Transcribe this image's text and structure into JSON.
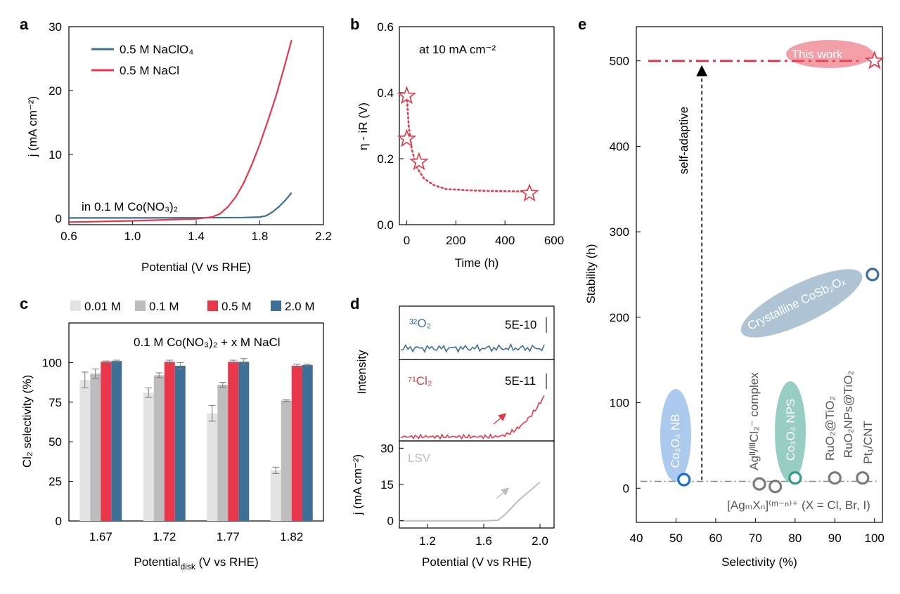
{
  "colors": {
    "blue": "#3e7097",
    "red": "#e8364a",
    "grey": "#bdbdbd",
    "lightgrey": "#e3e3e3",
    "darkgrey": "#7b7b7b",
    "green": "#2f9b85"
  },
  "panels": {
    "a": {
      "letter": "a",
      "xlabel": "Potential (V vs RHE)",
      "ylabel": "j (mA cm⁻²)",
      "xticks": [
        "0.6",
        "1.0",
        "1.4",
        "1.8",
        "2.2"
      ],
      "yticks": [
        "0",
        "10",
        "20",
        "30"
      ],
      "legend": [
        "0.5 M NaClO₄",
        "0.5 M NaCl"
      ],
      "annotation": "in 0.1 M Co(NO₃)₂"
    },
    "b": {
      "letter": "b",
      "xlabel": "Time (h)",
      "ylabel": "η - iR (V)",
      "xticks": [
        "0",
        "200",
        "400",
        "600"
      ],
      "yticks": [
        "0.0",
        "0.2",
        "0.4",
        "0.6"
      ],
      "annotation": "at 10 mA cm⁻²"
    },
    "c": {
      "letter": "c",
      "xlabel": "Potential",
      "xlabel_sub": "disk",
      "xlabel_tail": " (V vs RHE)",
      "ylabel": "Cl₂ selectivity (%)",
      "yticks": [
        "0",
        "25",
        "50",
        "75",
        "100"
      ],
      "annotation": "0.1 M Co(NO₃)₂ + x M NaCl"
    },
    "d": {
      "letter": "d",
      "ylabel_intensity": "Intensity",
      "ylabel_j": "j (mA cm⁻²)",
      "xlabel": "Potential (V vs RHE)",
      "xticks": [
        "1.2",
        "1.6",
        "2.0"
      ],
      "jticks": [
        "0",
        "15",
        "30"
      ],
      "o2_label": "³²O₂",
      "o2_scale": "5E-10",
      "cl2_label": "⁷¹Cl₂",
      "cl2_scale": "5E-11",
      "lsv_label": "LSV"
    },
    "e": {
      "letter": "e",
      "xlabel": "Selectivity (%)",
      "ylabel": "Stability (h)",
      "xticks": [
        "40",
        "50",
        "60",
        "70",
        "80",
        "90",
        "100"
      ],
      "yticks": [
        "0",
        "100",
        "200",
        "300",
        "400",
        "500"
      ],
      "arrow_label": "self-adaptive",
      "labels": {
        "this_work": "This work",
        "cosb": "Crystalline CoSb₂Oₓ",
        "co3o4_nb": "Co₃O₄ NB",
        "ag_complex": "Agᴵᴵ/ᴵᴵᴵCl₂⁻ complex",
        "co3o4_nps": "Co₃O₄ NPS",
        "ruo2_tio2": "RuO₂@TiO₂",
        "ruo2nps_tio2": "RuO₂NPs@TiO₂",
        "pt1_cnt": "Pt₁/CNT",
        "agx": "[AgₘXₙ]⁽ᵐ⁻ⁿ⁾⁺ (X = Cl, Br, I)"
      }
    }
  },
  "chart_data": [
    {
      "id": "a",
      "type": "line",
      "title": "",
      "xlabel": "Potential (V vs RHE)",
      "ylabel": "j (mA cm-2)",
      "xlim": [
        0.6,
        2.2
      ],
      "ylim": [
        -1,
        30
      ],
      "series": [
        {
          "name": "0.5 M NaClO4",
          "color": "#3e7097",
          "x": [
            0.6,
            1.0,
            1.4,
            1.7,
            1.8,
            1.84,
            1.88,
            1.92,
            1.96,
            2.0
          ],
          "y": [
            0.05,
            0.05,
            0.08,
            0.12,
            0.2,
            0.4,
            1.0,
            1.8,
            2.8,
            4.0
          ]
        },
        {
          "name": "0.5 M NaCl",
          "color": "#e8364a",
          "x": [
            0.6,
            1.0,
            1.4,
            1.5,
            1.55,
            1.6,
            1.65,
            1.7,
            1.75,
            1.8,
            1.85,
            1.9,
            1.95,
            2.0
          ],
          "y": [
            -0.6,
            -0.4,
            -0.1,
            0.2,
            0.7,
            1.8,
            3.4,
            5.6,
            8.4,
            11.6,
            15.2,
            19.0,
            23.3,
            27.9
          ]
        }
      ]
    },
    {
      "id": "b",
      "type": "scatter",
      "title": "",
      "xlabel": "Time (h)",
      "ylabel": "η - iR (V)",
      "xlim": [
        -30,
        600
      ],
      "ylim": [
        0,
        0.6
      ],
      "points": {
        "x": [
          0,
          0,
          50,
          500
        ],
        "y": [
          0.39,
          0.26,
          0.19,
          0.095
        ]
      },
      "fit": {
        "x": [
          0,
          8,
          20,
          40,
          70,
          110,
          160,
          250,
          350,
          450,
          500
        ],
        "y": [
          0.39,
          0.3,
          0.23,
          0.175,
          0.14,
          0.12,
          0.108,
          0.104,
          0.102,
          0.101,
          0.1
        ]
      }
    },
    {
      "id": "c",
      "type": "bar",
      "title": "",
      "xlabel": "Potential_disk (V vs RHE)",
      "ylabel": "Cl2 selectivity (%)",
      "ylim": [
        0,
        125
      ],
      "categories": [
        "1.67",
        "1.72",
        "1.77",
        "1.82"
      ],
      "series": [
        {
          "name": "0.01 M",
          "color": "#e3e3e3",
          "values": [
            89,
            81,
            68,
            32
          ],
          "errors": [
            5,
            3,
            5,
            2
          ]
        },
        {
          "name": "0.1 M",
          "color": "#bdbdbd",
          "values": [
            93,
            92,
            86,
            76
          ],
          "errors": [
            3,
            1.5,
            1.5,
            0.5
          ]
        },
        {
          "name": "0.5 M",
          "color": "#e8364a",
          "values": [
            100.5,
            100.5,
            100.5,
            98
          ],
          "errors": [
            0.5,
            1,
            1,
            1
          ]
        },
        {
          "name": "2.0 M",
          "color": "#3e7097",
          "values": [
            101,
            98,
            100.5,
            98.5
          ],
          "errors": [
            0.5,
            2,
            2,
            0.5
          ]
        }
      ]
    },
    {
      "id": "d",
      "type": "line",
      "title": "",
      "xlabel": "Potential (V vs RHE)",
      "xlim": [
        1.0,
        2.1
      ],
      "series": [
        {
          "name": "32O2",
          "color": "#3e7097"
        },
        {
          "name": "71Cl2",
          "color": "#e8364a"
        },
        {
          "name": "LSV",
          "color": "#bdbdbd",
          "ylabel": "j (mA cm-2)",
          "ylim": [
            -3,
            33
          ],
          "x": [
            1.0,
            1.6,
            1.7,
            1.75,
            1.8,
            1.85,
            1.9,
            1.95,
            2.0
          ],
          "y": [
            0,
            0,
            0.2,
            2.5,
            5.5,
            8.5,
            11,
            13.5,
            16
          ]
        }
      ]
    },
    {
      "id": "e",
      "type": "scatter",
      "title": "",
      "xlabel": "Selectivity (%)",
      "ylabel": "Stability (h)",
      "xlim": [
        40,
        102
      ],
      "ylim": [
        -40,
        540
      ],
      "points": [
        {
          "name": "This work",
          "x": 100,
          "y": 500,
          "marker": "star"
        },
        {
          "name": "Crystalline CoSb2Ox",
          "x": 99.5,
          "y": 250
        },
        {
          "name": "Co3O4 NB",
          "x": 52,
          "y": 10
        },
        {
          "name": "AgII/IIICl2- complex",
          "x": 71,
          "y": 5
        },
        {
          "name": "[AgmXn](m-n)+",
          "x": 75,
          "y": 2
        },
        {
          "name": "Co3O4 NPS",
          "x": 80,
          "y": 12
        },
        {
          "name": "RuO2@TiO2",
          "x": 90,
          "y": 12
        },
        {
          "name": "Pt1/CNT",
          "x": 97,
          "y": 12
        }
      ]
    }
  ]
}
